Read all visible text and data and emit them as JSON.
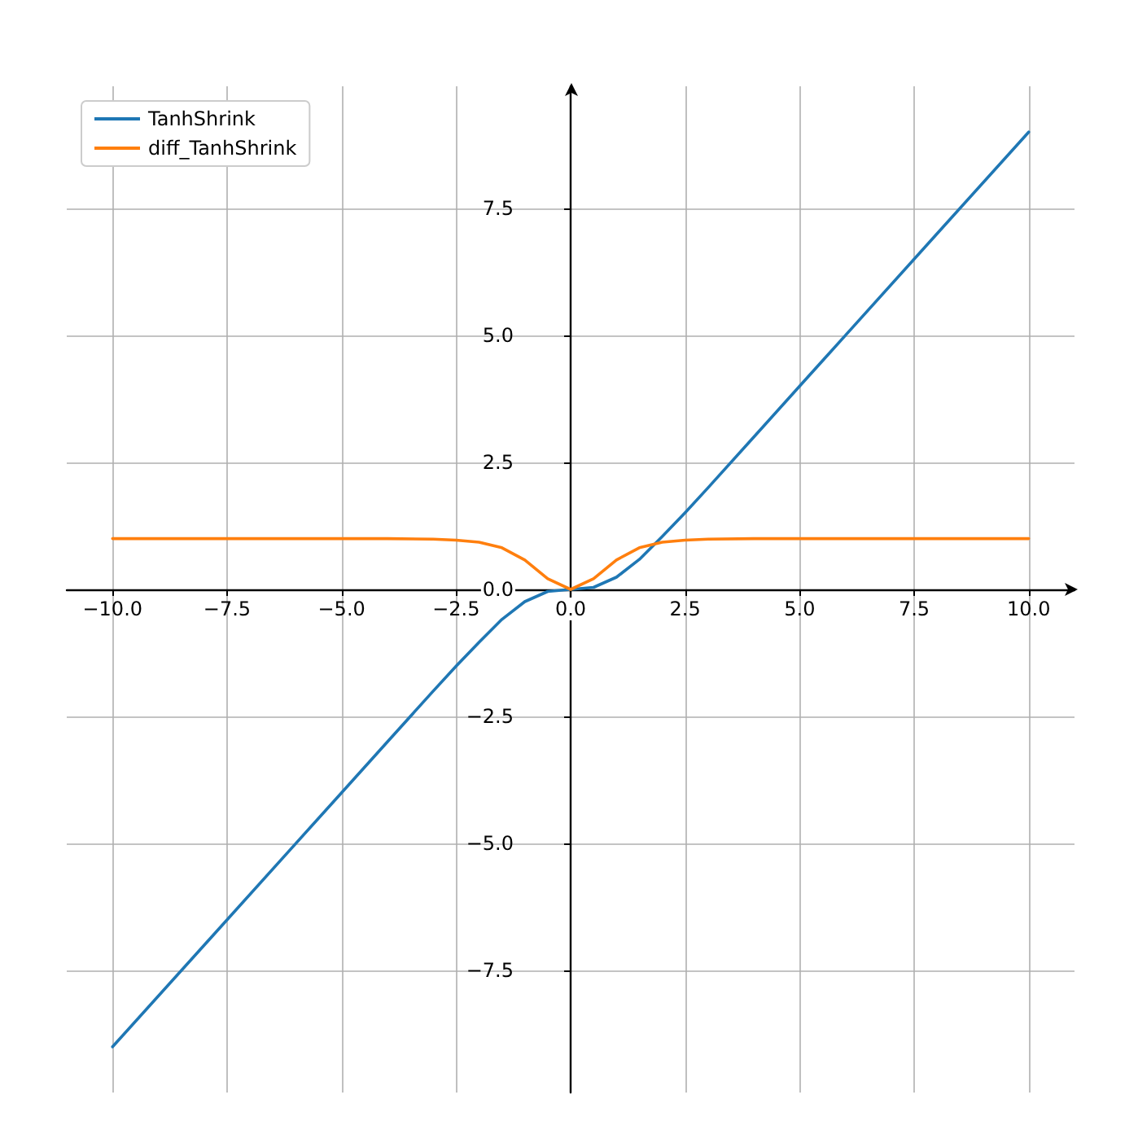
{
  "chart_data": {
    "type": "line",
    "x": [
      -10,
      -8,
      -6,
      -5,
      -4,
      -3,
      -2.5,
      -2,
      -1.5,
      -1,
      -0.5,
      0,
      0.5,
      1,
      1.5,
      2,
      2.5,
      3,
      4,
      5,
      6,
      8,
      10
    ],
    "series": [
      {
        "name": "TanhShrink",
        "color": "#1f77b4",
        "values": [
          -9.0,
          -7.0,
          -5.0,
          -4.0,
          -3.0,
          -2.0,
          -1.51,
          -1.04,
          -0.59,
          -0.24,
          -0.04,
          0,
          0.04,
          0.24,
          0.59,
          1.04,
          1.51,
          2.0,
          3.0,
          4.0,
          5.0,
          7.0,
          9.0
        ]
      },
      {
        "name": "diff_TanhShrink",
        "color": "#ff7f0e",
        "values": [
          1.0,
          1.0,
          1.0,
          1.0,
          1.0,
          0.99,
          0.97,
          0.93,
          0.82,
          0.58,
          0.21,
          0,
          0.21,
          0.58,
          0.82,
          0.93,
          0.97,
          0.99,
          1.0,
          1.0,
          1.0,
          1.0,
          1.0
        ]
      }
    ],
    "xlim": [
      -11,
      11
    ],
    "xticks": [
      {
        "value": -10,
        "label": "−10.0"
      },
      {
        "value": -7.5,
        "label": "−7.5"
      },
      {
        "value": -5,
        "label": "−5.0"
      },
      {
        "value": -2.5,
        "label": "−2.5"
      },
      {
        "value": 0,
        "label": "0.0"
      },
      {
        "value": 2.5,
        "label": "2.5"
      },
      {
        "value": 5,
        "label": "5.0"
      },
      {
        "value": 7.5,
        "label": "7.5"
      },
      {
        "value": 10,
        "label": "10.0"
      }
    ],
    "ylim": [
      -9.9,
      9.9
    ],
    "yticks": [
      {
        "value": -7.5,
        "label": "−7.5"
      },
      {
        "value": -5,
        "label": "−5.0"
      },
      {
        "value": -2.5,
        "label": "−2.5"
      },
      {
        "value": 0,
        "label": "0.0"
      },
      {
        "value": 2.5,
        "label": "2.5"
      },
      {
        "value": 5,
        "label": "5.0"
      },
      {
        "value": 7.5,
        "label": "7.5"
      }
    ],
    "grid": true,
    "legend": "top left",
    "marker": "none",
    "line_style": "solid"
  }
}
